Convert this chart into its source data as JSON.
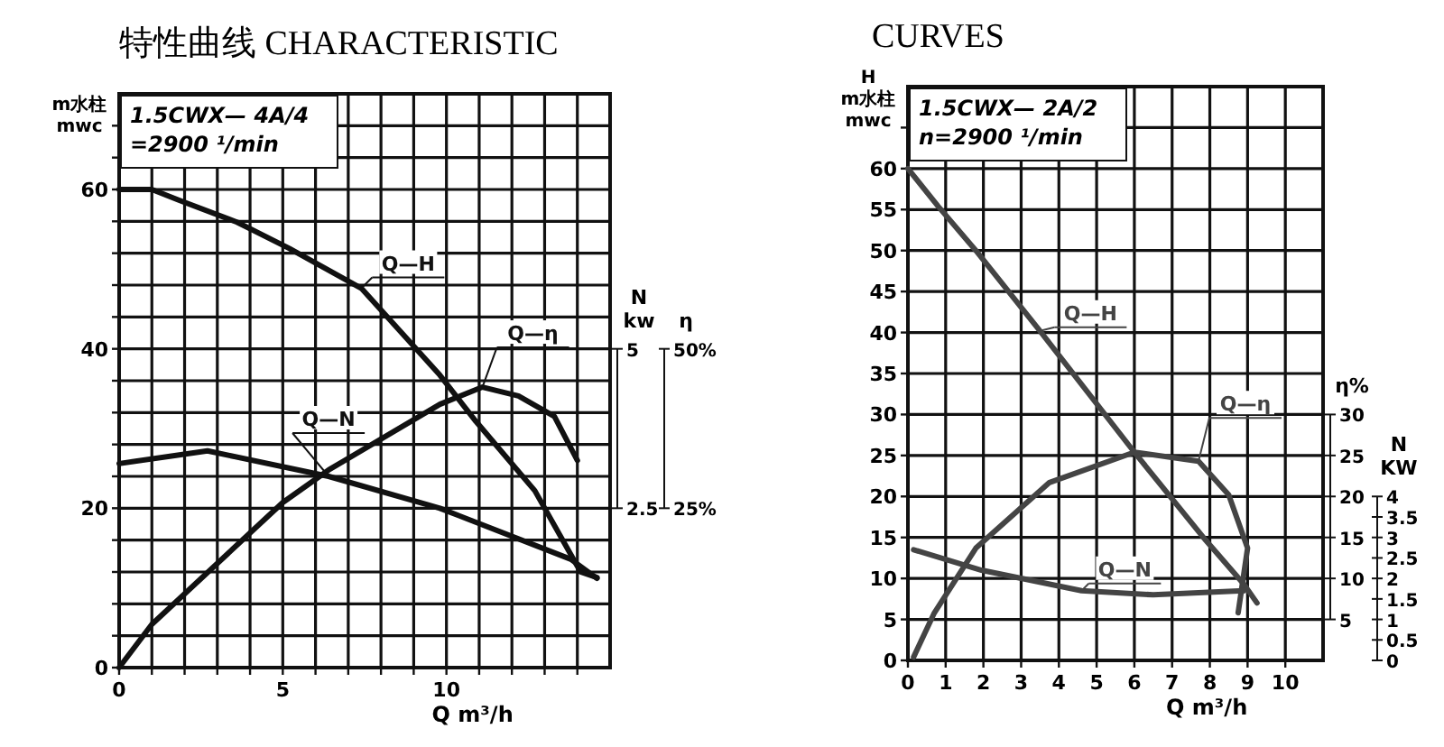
{
  "chart_data": [
    {
      "type": "line",
      "title": "特性曲线 CHARACTERISTIC",
      "xlabel": "Q m³/h",
      "ylabel": "m水柱\nmwc",
      "y2label": "N\nkw",
      "y3label": "η",
      "grid": true,
      "annotations": [
        "1.5CWX— 4A/4",
        "=2900 ¹/min"
      ],
      "xlim": [
        0,
        15
      ],
      "xticks": [
        0,
        {
          "value": 1,
          "label": null
        },
        {
          "value": 2,
          "label": null
        },
        {
          "value": 3,
          "label": null
        },
        {
          "value": 4,
          "label": null
        },
        5,
        {
          "value": 6,
          "label": null
        },
        {
          "value": 7,
          "label": null
        },
        {
          "value": 8,
          "label": null
        },
        {
          "value": 9,
          "label": null
        },
        10,
        {
          "value": 11,
          "label": null
        },
        {
          "value": 12,
          "label": null
        },
        {
          "value": 13,
          "label": null
        },
        {
          "value": 14,
          "label": null
        }
      ],
      "ylim": [
        0,
        72
      ],
      "yticks": [
        0,
        {
          "value": 4,
          "label": null
        },
        {
          "value": 8,
          "label": null
        },
        {
          "value": 12,
          "label": null
        },
        {
          "value": 16,
          "label": null
        },
        20,
        {
          "value": 24,
          "label": null
        },
        {
          "value": 28,
          "label": null
        },
        {
          "value": 32,
          "label": null
        },
        {
          "value": 36,
          "label": null
        },
        40,
        {
          "value": 44,
          "label": null
        },
        {
          "value": 48,
          "label": null
        },
        {
          "value": 52,
          "label": null
        },
        {
          "value": 56,
          "label": null
        },
        60,
        {
          "value": 64,
          "label": null
        },
        {
          "value": 68,
          "label": null
        }
      ],
      "y2lim": [
        0,
        9
      ],
      "y2ticks": [
        2.5,
        5
      ],
      "y3lim": [
        0,
        90
      ],
      "y3ticks": [
        {
          "value": 25,
          "label": "25%"
        },
        {
          "value": 50,
          "label": "50%"
        }
      ],
      "series": [
        {
          "name": "Q—H",
          "color": "#111111",
          "axis": "y",
          "x": [
            0,
            1,
            1.8,
            3.6,
            5.2,
            7.4,
            9.8,
            10.9,
            12.7,
            14.1,
            14.6
          ],
          "values": [
            60,
            60,
            58.7,
            55.9,
            52.6,
            47.6,
            36.7,
            30.9,
            22.2,
            12,
            11.3
          ]
        },
        {
          "name": "Q—η",
          "color": "#111111",
          "axis": "y3",
          "x": [
            0,
            1,
            5,
            6.4,
            9.8,
            11.1,
            12.2,
            13.3,
            14
          ],
          "values": [
            0,
            6.8,
            25.9,
            31,
            41.3,
            44,
            42.6,
            39.4,
            32.5
          ]
        },
        {
          "name": "Q—N",
          "color": "#111111",
          "axis": "y2",
          "x": [
            0,
            2.7,
            6.4,
            9.8,
            13.8,
            14.6
          ],
          "values": [
            3.2,
            3.4,
            3.0,
            2.5,
            1.7,
            1.4
          ]
        }
      ]
    },
    {
      "type": "line",
      "title": "CURVES",
      "xlabel": "Q m³/h",
      "ylabel": "H\nm水柱\nmwc",
      "y2label": "η%",
      "y3label": "N\nKW",
      "grid": true,
      "annotations": [
        "1.5CWX— 2A/2",
        "n=2900 ¹/min"
      ],
      "xlim": [
        0,
        11
      ],
      "xticks": [
        0,
        1,
        2,
        3,
        4,
        5,
        6,
        7,
        8,
        9,
        10
      ],
      "ylim": [
        0,
        70
      ],
      "yticks": [
        0,
        5,
        10,
        15,
        20,
        25,
        30,
        35,
        40,
        45,
        50,
        55,
        60,
        {
          "value": 65,
          "label": null
        }
      ],
      "y2lim": [
        0,
        70
      ],
      "y2ticks": [
        5,
        10,
        15,
        20,
        25,
        30
      ],
      "y3lim": [
        0,
        14
      ],
      "y3ticks": [
        0,
        0.5,
        1,
        1.5,
        2,
        2.5,
        3,
        3.5,
        4
      ],
      "series": [
        {
          "name": "Q—H",
          "color": "#444444",
          "axis": "y",
          "x": [
            0,
            0.8,
            1.8,
            3.5,
            6,
            7.9,
            8.9,
            9.25
          ],
          "values": [
            60,
            55.4,
            50,
            40.2,
            25.4,
            14.6,
            9.3,
            7
          ]
        },
        {
          "name": "Q—η",
          "color": "#444444",
          "axis": "y2",
          "x": [
            0.15,
            0.7,
            1.8,
            3.75,
            6,
            7.7,
            8.5,
            9,
            8.75
          ],
          "values": [
            0.4,
            5.8,
            13.7,
            21.7,
            25.4,
            24.3,
            20.2,
            13.7,
            5.8
          ]
        },
        {
          "name": "Q—N",
          "color": "#444444",
          "axis": "y3",
          "x": [
            0.15,
            1.95,
            4.6,
            6.5,
            8.9
          ],
          "values": [
            2.7,
            2.2,
            1.7,
            1.6,
            1.7
          ]
        }
      ]
    }
  ]
}
